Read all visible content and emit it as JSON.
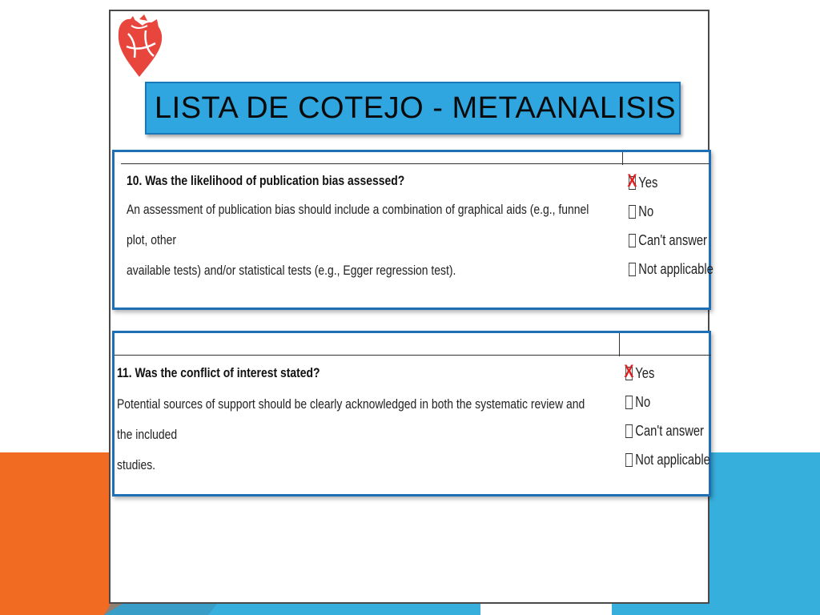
{
  "title": "LISTA DE COTEJO - METAANALISIS",
  "colors": {
    "accent_blue": "#2fa6e0",
    "frame_blue": "#1f6fb6",
    "orange": "#f26b22",
    "check_red": "#e02020"
  },
  "logo": {
    "icon": "heart-icon"
  },
  "questions": [
    {
      "title": "10. Was the likelihood of publication bias assessed?",
      "description_lines": [
        "An assessment of publication bias should include a combination of graphical aids (e.g., funnel plot, other",
        "available tests) and/or statistical tests (e.g., Egger regression test)."
      ],
      "options": [
        "Yes",
        "No",
        "Can't answer",
        "Not applicable"
      ],
      "checked": "Yes",
      "check_mark": "X"
    },
    {
      "title": "11. Was the conflict of interest stated?",
      "description_lines": [
        "Potential sources of support should be clearly acknowledged in both the systematic review and the included",
        "studies."
      ],
      "options": [
        "Yes",
        "No",
        "Can't answer",
        "Not applicable"
      ],
      "checked": "Yes",
      "check_mark": "X"
    }
  ]
}
